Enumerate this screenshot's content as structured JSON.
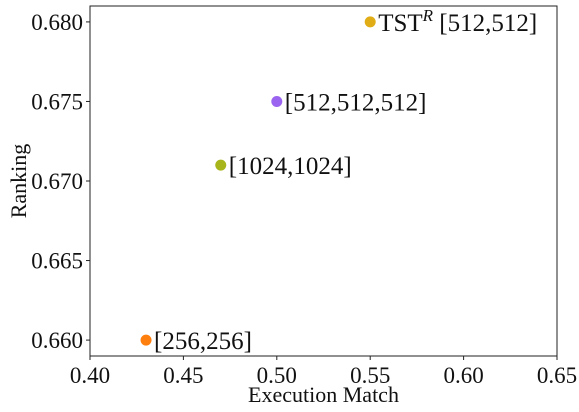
{
  "chart_data": {
    "type": "scatter",
    "title": "",
    "xlabel": "Execution Match",
    "ylabel": "Ranking",
    "xlim": [
      0.4,
      0.65
    ],
    "ylim": [
      0.659,
      0.681
    ],
    "xticks": [
      0.4,
      0.45,
      0.5,
      0.55,
      0.6,
      0.65
    ],
    "xtick_labels": [
      "0.40",
      "0.45",
      "0.50",
      "0.55",
      "0.60",
      "0.65"
    ],
    "yticks": [
      0.66,
      0.665,
      0.67,
      0.675,
      0.68
    ],
    "ytick_labels": [
      "0.660",
      "0.665",
      "0.670",
      "0.675",
      "0.680"
    ],
    "grid": false,
    "legend": "none",
    "points": [
      {
        "x": 0.43,
        "y": 0.66,
        "label": "[256,256]",
        "label_sup": "",
        "label_suffix": "",
        "color": "#ff7f0e"
      },
      {
        "x": 0.47,
        "y": 0.671,
        "label": "[1024,1024]",
        "label_sup": "",
        "label_suffix": "",
        "color": "#a8b51a"
      },
      {
        "x": 0.5,
        "y": 0.675,
        "label": "[512,512,512]",
        "label_sup": "",
        "label_suffix": "",
        "color": "#9a63f0"
      },
      {
        "x": 0.55,
        "y": 0.68,
        "label": "TST",
        "label_sup": "R",
        "label_suffix": " [512,512]",
        "color": "#e0ad16"
      }
    ]
  }
}
